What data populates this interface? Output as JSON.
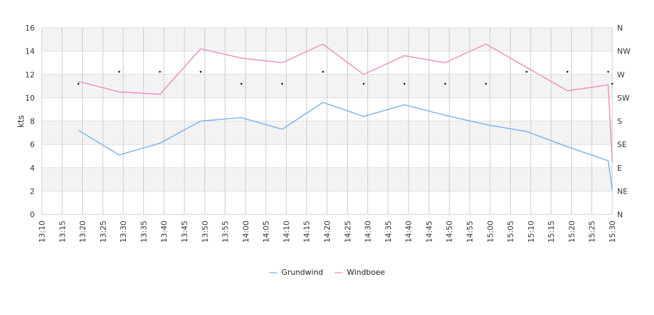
{
  "chart_data": {
    "type": "line",
    "title": "",
    "xlabel": "",
    "ylabel": "kts",
    "ylim": [
      0,
      16
    ],
    "yticks": [
      "0",
      "2",
      "4",
      "6",
      "8",
      "10",
      "12",
      "14",
      "16"
    ],
    "y2ticks": [
      "N",
      "NE",
      "E",
      "SE",
      "S",
      "SW",
      "W",
      "NW",
      "N"
    ],
    "y2lim": [
      0,
      360
    ],
    "xlim": [
      "13:10",
      "15:30"
    ],
    "xticks": [
      "13:10",
      "13:15",
      "13:20",
      "13:25",
      "13:30",
      "13:35",
      "13:40",
      "13:45",
      "13:50",
      "13:55",
      "14:00",
      "14:05",
      "14:10",
      "14:15",
      "14:20",
      "14:25",
      "14:30",
      "14:35",
      "14:40",
      "14:45",
      "14:50",
      "14:55",
      "15:00",
      "15:05",
      "15:10",
      "15:15",
      "15:20",
      "15:25",
      "15:30"
    ],
    "x": [
      "13:19",
      "13:29",
      "13:39",
      "13:49",
      "13:59",
      "14:09",
      "14:19",
      "14:29",
      "14:39",
      "14:49",
      "14:59",
      "15:09",
      "15:19",
      "15:29",
      "15:30"
    ],
    "series": [
      {
        "name": "Grundwind",
        "color": "#7cb5ec",
        "values": [
          7.2,
          5.1,
          6.1,
          8.0,
          8.3,
          7.3,
          9.6,
          8.4,
          9.4,
          8.5,
          7.7,
          7.1,
          5.8,
          4.6,
          2.1
        ]
      },
      {
        "name": "Windboee",
        "color": "#f08fc0",
        "values": [
          11.4,
          10.5,
          10.3,
          14.2,
          13.4,
          13.0,
          14.6,
          12.0,
          13.6,
          13.0,
          14.6,
          12.6,
          10.6,
          11.1,
          4.5
        ]
      }
    ],
    "direction_deg": [
      252,
      275,
      275,
      275,
      252,
      252,
      275,
      252,
      252,
      252,
      252,
      275,
      275,
      275,
      252
    ],
    "grid": true,
    "legend_position": "bottom-center"
  }
}
